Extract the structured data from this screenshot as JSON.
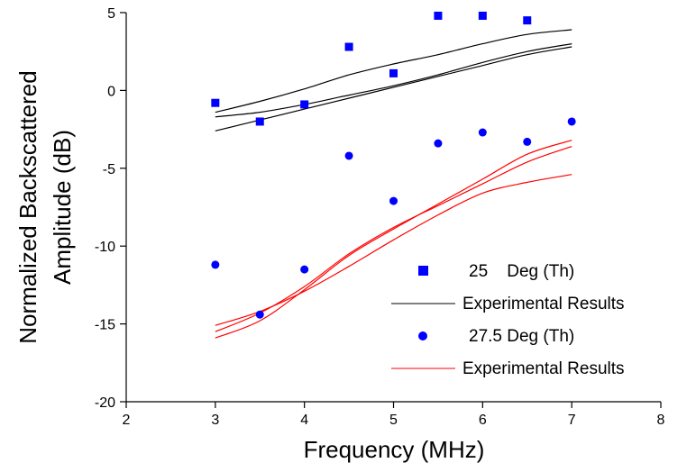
{
  "chart_data": {
    "type": "scatter",
    "xlabel": "Frequency (MHz)",
    "ylabel_lines": [
      "Normalized Backscattered",
      "Amplitude (dB)"
    ],
    "xlim": [
      2,
      8
    ],
    "ylim": [
      -20,
      5
    ],
    "xticks": [
      "2",
      "3",
      "4",
      "5",
      "6",
      "7",
      "8"
    ],
    "yticks": [
      "5",
      "0",
      "-5",
      "-10",
      "-15",
      "-20"
    ],
    "grid": false,
    "legend_position": "bottom-right",
    "series": [
      {
        "name": "25    Deg (Th)",
        "kind": "scatter",
        "marker": "square",
        "color": "#0000ff",
        "x": [
          3,
          3.5,
          4,
          4.5,
          5,
          5.5,
          6,
          6.5
        ],
        "y": [
          -0.8,
          -2.0,
          -0.9,
          2.8,
          1.1,
          4.8,
          4.8,
          4.5
        ]
      },
      {
        "name": "Experimental Results",
        "kind": "lines",
        "color": "#000000",
        "lines": [
          {
            "x": [
              3,
              3.5,
              4,
              4.5,
              5,
              5.5,
              6,
              6.5,
              7
            ],
            "y": [
              -1.4,
              -0.7,
              0.1,
              1.0,
              1.7,
              2.3,
              3.0,
              3.6,
              3.9
            ]
          },
          {
            "x": [
              3,
              3.5,
              4,
              4.5,
              5,
              5.5,
              6,
              6.5,
              7
            ],
            "y": [
              -1.7,
              -1.4,
              -0.9,
              -0.3,
              0.3,
              1.0,
              1.8,
              2.5,
              3.0
            ]
          },
          {
            "x": [
              3,
              3.5,
              4,
              4.5,
              5,
              5.5,
              6,
              6.5,
              7
            ],
            "y": [
              -2.6,
              -1.9,
              -1.2,
              -0.5,
              0.2,
              0.9,
              1.6,
              2.3,
              2.8
            ]
          }
        ]
      },
      {
        "name": "27.5 Deg (Th)",
        "kind": "scatter",
        "marker": "circle",
        "color": "#0000ff",
        "x": [
          3,
          3.5,
          4,
          4.5,
          5,
          5.5,
          6,
          6.5,
          7
        ],
        "y": [
          -11.2,
          -14.4,
          -11.5,
          -4.2,
          -7.1,
          -3.4,
          -2.7,
          -3.3,
          -2.0
        ]
      },
      {
        "name": "Experimental Results",
        "kind": "lines",
        "color": "#ff0000",
        "lines": [
          {
            "x": [
              3,
              3.5,
              4,
              4.5,
              5,
              5.5,
              6,
              6.5,
              7
            ],
            "y": [
              -15.1,
              -14.2,
              -12.9,
              -11.3,
              -9.6,
              -8.0,
              -6.6,
              -5.9,
              -5.4
            ]
          },
          {
            "x": [
              3,
              3.5,
              4,
              4.5,
              5,
              5.5,
              6,
              6.5,
              7
            ],
            "y": [
              -15.5,
              -14.3,
              -12.6,
              -10.5,
              -8.8,
              -7.4,
              -6.0,
              -4.6,
              -3.6
            ]
          },
          {
            "x": [
              3,
              3.5,
              4,
              4.5,
              5,
              5.5,
              6,
              6.5,
              7
            ],
            "y": [
              -15.9,
              -14.8,
              -12.8,
              -10.6,
              -8.9,
              -7.3,
              -5.7,
              -4.1,
              -3.2
            ]
          }
        ]
      }
    ]
  }
}
